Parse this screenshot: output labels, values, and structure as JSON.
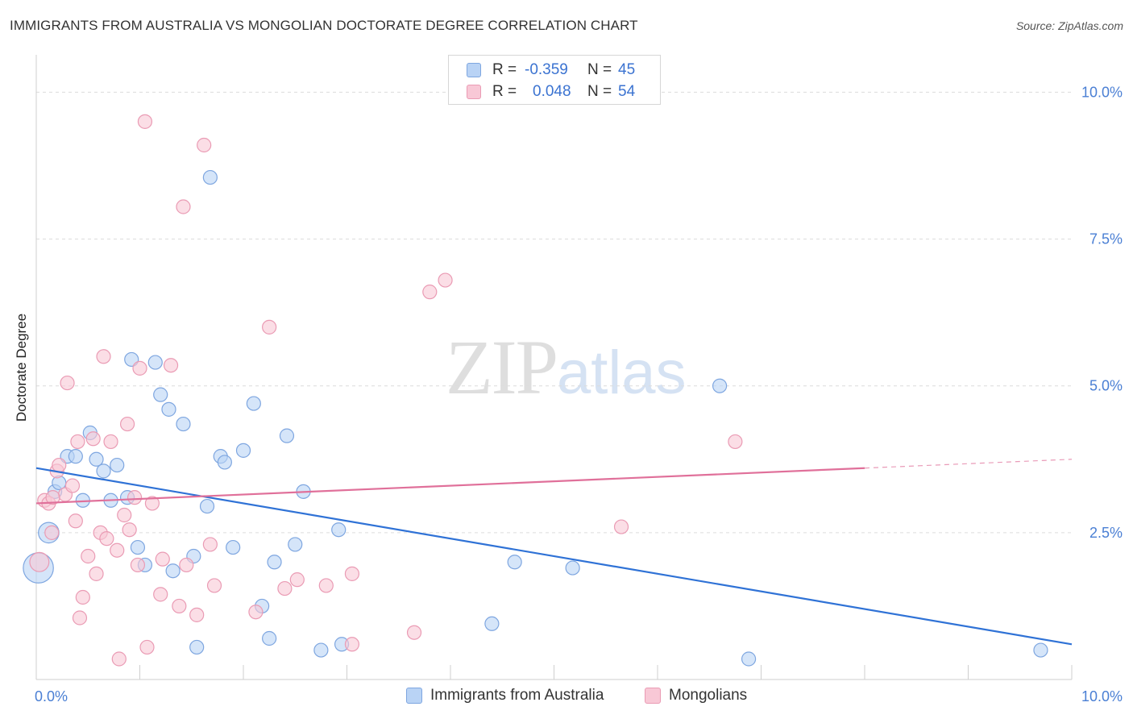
{
  "title": "IMMIGRANTS FROM AUSTRALIA VS MONGOLIAN DOCTORATE DEGREE CORRELATION CHART",
  "source": "Source: ZipAtlas.com",
  "watermark": {
    "zip": "ZIP",
    "atlas": "atlas"
  },
  "legend": {
    "rows": [
      {
        "label": "R =",
        "r": "-0.359",
        "n_label": "N =",
        "n": "45",
        "fill": "#b9d3f5",
        "stroke": "#7ea6e0"
      },
      {
        "label": "R =",
        "r": "0.048",
        "n_label": "N =",
        "n": "54",
        "fill": "#f8c8d6",
        "stroke": "#ea9bb4"
      }
    ]
  },
  "bottom_legend": [
    {
      "label": "Immigrants from Australia",
      "fill": "#b9d3f5",
      "stroke": "#7ea6e0"
    },
    {
      "label": "Mongolians",
      "fill": "#f8c8d6",
      "stroke": "#ea9bb4"
    }
  ],
  "chart_data": {
    "type": "scatter",
    "title": "IMMIGRANTS FROM AUSTRALIA VS MONGOLIAN DOCTORATE DEGREE CORRELATION CHART",
    "xlabel": "",
    "ylabel": "Doctorate Degree",
    "xlim": [
      0,
      10
    ],
    "ylim": [
      0,
      10.5
    ],
    "x_ticks": [
      {
        "v": 0,
        "label": "0.0%"
      },
      {
        "v": 10,
        "label": "10.0%"
      }
    ],
    "y_ticks": [
      {
        "v": 2.5,
        "label": "2.5%"
      },
      {
        "v": 5.0,
        "label": "5.0%"
      },
      {
        "v": 7.5,
        "label": "7.5%"
      },
      {
        "v": 10.0,
        "label": "10.0%"
      }
    ],
    "grid": true,
    "legend_position": "top-center",
    "colors": {
      "australia_fill": "#b9d3f5",
      "australia_stroke": "#7ea6e0",
      "australia_line": "#2f72d6",
      "mongolian_fill": "#f8c8d6",
      "mongolian_stroke": "#ea9bb4",
      "mongolian_line": "#e0709a"
    },
    "series": [
      {
        "name": "Immigrants from Australia",
        "key": "australia",
        "trend": {
          "x0": 0.0,
          "y0": 3.6,
          "x1": 10.0,
          "y1": 0.6,
          "solid_to": 10.0
        },
        "points": [
          [
            0.02,
            1.9,
            2.2
          ],
          [
            0.12,
            2.5,
            1.5
          ],
          [
            0.18,
            3.2,
            1
          ],
          [
            0.22,
            3.35,
            1
          ],
          [
            0.3,
            3.8,
            1
          ],
          [
            0.38,
            3.8,
            1
          ],
          [
            0.45,
            3.05,
            1
          ],
          [
            0.52,
            4.2,
            1
          ],
          [
            0.58,
            3.75,
            1
          ],
          [
            0.65,
            3.55,
            1
          ],
          [
            0.72,
            3.05,
            1
          ],
          [
            0.78,
            3.65,
            1
          ],
          [
            0.88,
            3.1,
            1
          ],
          [
            0.92,
            5.45,
            1
          ],
          [
            0.98,
            2.25,
            1
          ],
          [
            1.05,
            1.95,
            1
          ],
          [
            1.15,
            5.4,
            1
          ],
          [
            1.2,
            4.85,
            1
          ],
          [
            1.28,
            4.6,
            1
          ],
          [
            1.32,
            1.85,
            1
          ],
          [
            1.42,
            4.35,
            1
          ],
          [
            1.52,
            2.1,
            1
          ],
          [
            1.55,
            0.55,
            1
          ],
          [
            1.65,
            2.95,
            1
          ],
          [
            1.68,
            8.55,
            1
          ],
          [
            1.78,
            3.8,
            1
          ],
          [
            1.82,
            3.7,
            1
          ],
          [
            1.9,
            2.25,
            1
          ],
          [
            2.0,
            3.9,
            1
          ],
          [
            2.1,
            4.7,
            1
          ],
          [
            2.18,
            1.25,
            1
          ],
          [
            2.25,
            0.7,
            1
          ],
          [
            2.3,
            2.0,
            1
          ],
          [
            2.42,
            4.15,
            1
          ],
          [
            2.5,
            2.3,
            1
          ],
          [
            2.58,
            3.2,
            1
          ],
          [
            2.75,
            0.5,
            1
          ],
          [
            2.92,
            2.55,
            1
          ],
          [
            2.95,
            0.6,
            1
          ],
          [
            4.4,
            0.95,
            1
          ],
          [
            4.62,
            2.0,
            1
          ],
          [
            5.18,
            1.9,
            1
          ],
          [
            6.6,
            5.0,
            1
          ],
          [
            6.88,
            0.35,
            1
          ],
          [
            9.7,
            0.5,
            1
          ]
        ]
      },
      {
        "name": "Mongolians",
        "key": "mongolian",
        "trend": {
          "x0": 0.0,
          "y0": 3.0,
          "x1": 10.0,
          "y1": 3.75,
          "solid_to": 8.0
        },
        "points": [
          [
            0.03,
            2.0,
            1.4
          ],
          [
            0.08,
            3.05,
            1
          ],
          [
            0.12,
            3.0,
            1
          ],
          [
            0.15,
            2.5,
            1
          ],
          [
            0.2,
            3.55,
            1
          ],
          [
            0.22,
            3.65,
            1
          ],
          [
            0.28,
            3.15,
            1
          ],
          [
            0.3,
            5.05,
            1
          ],
          [
            0.35,
            3.3,
            1
          ],
          [
            0.38,
            2.7,
            1
          ],
          [
            0.4,
            4.05,
            1
          ],
          [
            0.42,
            1.05,
            1
          ],
          [
            0.45,
            1.4,
            1
          ],
          [
            0.5,
            2.1,
            1
          ],
          [
            0.55,
            4.1,
            1
          ],
          [
            0.58,
            1.8,
            1
          ],
          [
            0.62,
            2.5,
            1
          ],
          [
            0.65,
            5.5,
            1
          ],
          [
            0.68,
            2.4,
            1
          ],
          [
            0.72,
            4.05,
            1
          ],
          [
            0.78,
            2.2,
            1
          ],
          [
            0.8,
            0.35,
            1
          ],
          [
            0.85,
            2.8,
            1
          ],
          [
            0.88,
            4.35,
            1
          ],
          [
            0.9,
            2.55,
            1
          ],
          [
            0.95,
            3.1,
            1
          ],
          [
            0.98,
            1.95,
            1
          ],
          [
            1.0,
            5.3,
            1
          ],
          [
            1.05,
            9.5,
            1
          ],
          [
            1.07,
            0.55,
            1
          ],
          [
            1.12,
            3.0,
            1
          ],
          [
            1.2,
            1.45,
            1
          ],
          [
            1.22,
            2.05,
            1
          ],
          [
            1.3,
            5.35,
            1
          ],
          [
            1.38,
            1.25,
            1
          ],
          [
            1.42,
            8.05,
            1
          ],
          [
            1.45,
            1.95,
            1
          ],
          [
            1.55,
            1.1,
            1
          ],
          [
            1.62,
            9.1,
            1
          ],
          [
            1.68,
            2.3,
            1
          ],
          [
            1.72,
            1.6,
            1
          ],
          [
            2.12,
            1.15,
            1
          ],
          [
            2.25,
            6.0,
            1
          ],
          [
            2.4,
            1.55,
            1
          ],
          [
            2.52,
            1.7,
            1
          ],
          [
            2.8,
            1.6,
            1
          ],
          [
            3.05,
            0.6,
            1
          ],
          [
            3.05,
            1.8,
            1
          ],
          [
            3.65,
            0.8,
            1
          ],
          [
            3.8,
            6.6,
            1
          ],
          [
            3.95,
            6.8,
            1
          ],
          [
            5.65,
            2.6,
            1
          ],
          [
            6.75,
            4.05,
            1
          ],
          [
            0.16,
            3.1,
            1
          ]
        ]
      }
    ]
  }
}
